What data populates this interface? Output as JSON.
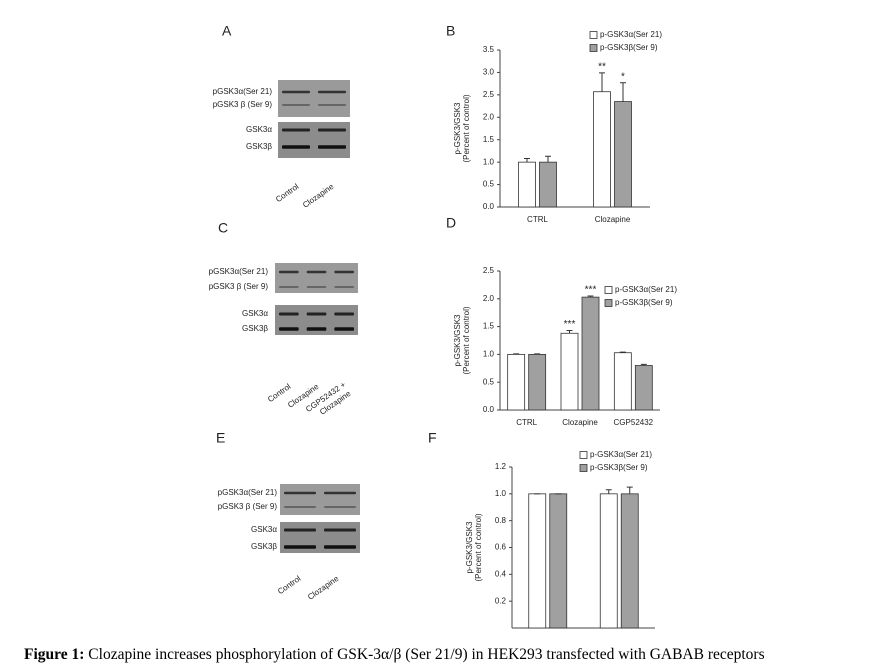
{
  "panels": [
    {
      "letter": "A",
      "blot_labels": [
        "pGSK3α(Ser 21)",
        "pGSK3 β (Ser 9)",
        "GSK3α",
        "GSK3β"
      ],
      "lane_labels": [
        "Control",
        "Clozapine"
      ]
    },
    {
      "letter": "C",
      "blot_labels": [
        "pGSK3α(Ser 21)",
        "pGSK3 β (Ser 9)",
        "GSK3α",
        "GSK3β"
      ],
      "lane_labels": [
        "Control",
        "Clozapine",
        "CGP52432 +",
        "Clozapine"
      ]
    },
    {
      "letter": "E",
      "blot_labels": [
        "pGSK3α(Ser 21)",
        "pGSK3 β (Ser 9)",
        "GSK3α",
        "GSK3β"
      ],
      "lane_labels": [
        "Control",
        "Clozapine"
      ]
    }
  ],
  "chart_data": [
    {
      "type": "bar",
      "panel": "B",
      "y_label": [
        "p-GSK3/GSK3",
        "(Percent of control)"
      ],
      "categories": [
        "CTRL",
        "Clozapine"
      ],
      "series": [
        {
          "name": "p-GSK3α(Ser 21)",
          "color": "#ffffff",
          "values": [
            1.0,
            2.57
          ],
          "errors": [
            0.08,
            0.42
          ],
          "significance": [
            null,
            "**"
          ]
        },
        {
          "name": "p-GSK3β(Ser 9)",
          "color": "#a0a0a0",
          "values": [
            1.0,
            2.35
          ],
          "errors": [
            0.13,
            0.42
          ],
          "significance": [
            null,
            "*"
          ]
        }
      ],
      "ylim": [
        0,
        3.5
      ],
      "yticks": [
        {
          "value": 0,
          "label": "0.0"
        },
        0.5,
        {
          "value": 1,
          "label": "1.0"
        },
        1.5,
        {
          "value": 2,
          "label": "2.0"
        },
        2.5,
        {
          "value": 3,
          "label": "3.0"
        },
        3.5
      ]
    },
    {
      "type": "bar",
      "panel": "D",
      "y_label": [
        "p-GSK3/GSK3",
        "(Percent of control)"
      ],
      "categories": [
        "CTRL",
        "Clozapine",
        "CGP52432"
      ],
      "series": [
        {
          "name": "p-GSK3α(Ser 21)",
          "color": "#ffffff",
          "values": [
            1.0,
            1.38,
            1.03
          ],
          "errors": [
            0.01,
            0.05,
            0.01
          ],
          "significance": [
            null,
            "***",
            null
          ]
        },
        {
          "name": "p-GSK3β(Ser 9)",
          "color": "#a0a0a0",
          "values": [
            1.0,
            2.03,
            0.8
          ],
          "errors": [
            0.01,
            0.02,
            0.02
          ],
          "significance": [
            null,
            "***",
            null
          ]
        }
      ],
      "ylim": [
        0,
        2.5
      ],
      "yticks": [
        {
          "value": 0,
          "label": "0.0"
        },
        0.5,
        {
          "value": 1,
          "label": "1.0"
        },
        1.5,
        {
          "value": 2,
          "label": "2.0"
        },
        2.5
      ]
    },
    {
      "type": "bar",
      "panel": "F",
      "y_label": [
        "p-GSK3/GSK3",
        "(Percent of control)"
      ],
      "categories": [
        null,
        null
      ],
      "series": [
        {
          "name": "p-GSK3α(Ser 21)",
          "color": "#ffffff",
          "values": [
            1.0,
            1.0
          ],
          "errors": [
            0,
            0.03
          ],
          "significance": [
            null,
            null
          ]
        },
        {
          "name": "p-GSK3β(Ser 9)",
          "color": "#a0a0a0",
          "values": [
            1.0,
            1.0
          ],
          "errors": [
            0,
            0.05
          ],
          "significance": [
            null,
            null
          ]
        }
      ],
      "ylim": [
        0,
        1.2
      ],
      "yticks": [
        0.2,
        0.4,
        0.6,
        0.8,
        {
          "value": 1,
          "label": "1.0"
        },
        1.2
      ]
    }
  ],
  "caption": {
    "label": "Figure 1:",
    "text": "Clozapine increases phosphorylation of GSK-3α/β (Ser 21/9) in HEK293 transfected with GABAB receptors"
  }
}
